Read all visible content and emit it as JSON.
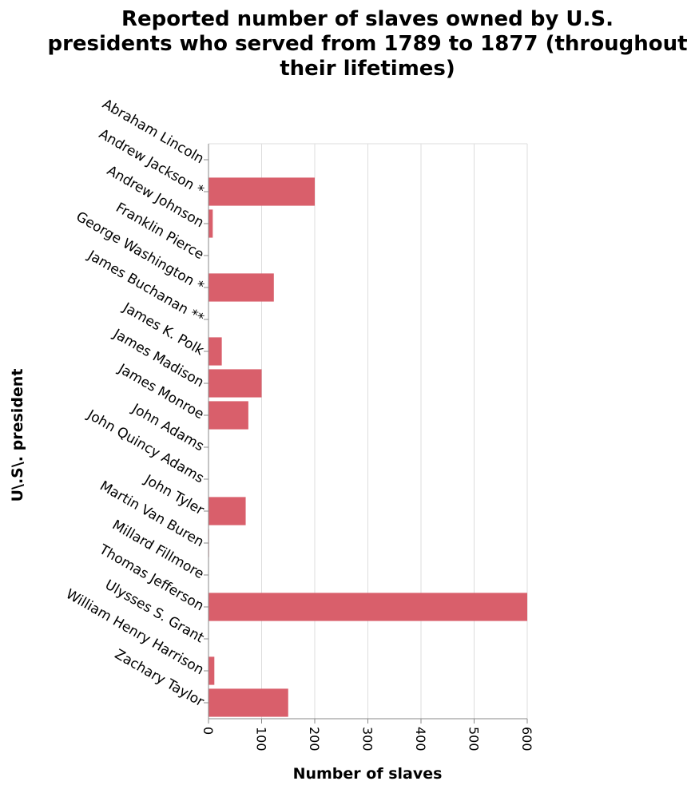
{
  "chart_data": {
    "type": "bar",
    "orientation": "horizontal",
    "title_lines": [
      "Reported number of slaves owned by U.S.",
      "presidents who served from 1789 to 1877 (throughout",
      "their lifetimes)"
    ],
    "xlabel": "Number of slaves",
    "ylabel": "U\\.S\\. president",
    "xlim": [
      0,
      600
    ],
    "xticks": [
      0,
      100,
      200,
      300,
      400,
      500,
      600
    ],
    "grid": true,
    "color": "#d95f6b",
    "categories": [
      "Abraham Lincoln",
      "Andrew Jackson *",
      "Andrew Johnson",
      "Franklin Pierce",
      "George Washington *",
      "James Buchanan **",
      "James K. Polk",
      "James Madison",
      "James Monroe",
      "John Adams",
      "John Quincy Adams",
      "John Tyler",
      "Martin Van Buren",
      "Millard Fillmore",
      "Thomas Jefferson",
      "Ulysses S. Grant",
      "William Henry Harrison",
      "Zachary Taylor"
    ],
    "values": [
      0,
      200,
      8,
      0,
      123,
      0,
      25,
      100,
      75,
      0,
      0,
      70,
      1,
      0,
      600,
      0,
      11,
      150
    ]
  }
}
